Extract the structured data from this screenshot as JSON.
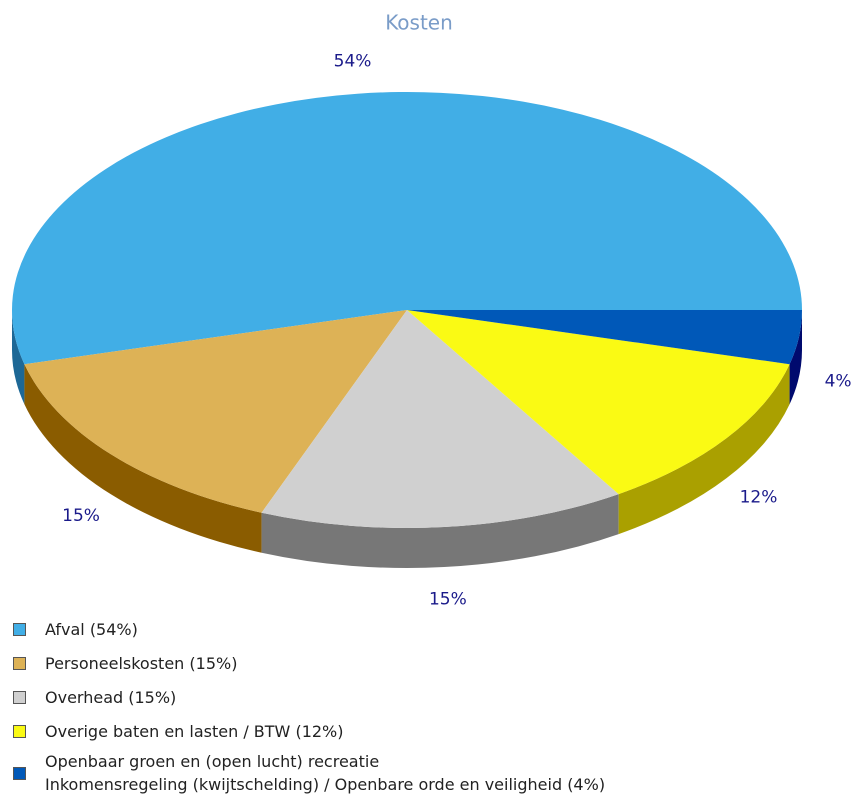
{
  "chart_data": {
    "type": "pie3d",
    "title": "Kosten",
    "categories": [
      "Afval (54%)",
      "Personeelskosten (15%)",
      "Overhead (15%)",
      "Overige baten en lasten / BTW (12%)",
      "Openbaar groen en (open lucht) recreatie\nInkomensregeling (kwijtschelding) / Openbare orde en veiligheid (4%)"
    ],
    "values": [
      54,
      15,
      15,
      12,
      4
    ],
    "value_labels": [
      "54%",
      "15%",
      "15%",
      "12%",
      "4%"
    ],
    "colors": [
      "#41aee6",
      "#ddb256",
      "#d0d0d0",
      "#fafa14",
      "#0058b8"
    ],
    "side_colors": [
      "#1d6896",
      "#8a5c00",
      "#777777",
      "#aaa000",
      "#000a6e"
    ]
  }
}
